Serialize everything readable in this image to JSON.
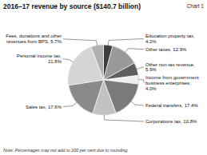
{
  "chart_data": {
    "type": "pie",
    "title": "2016–17 revenue by source ($140.7 billion)",
    "annotations": [
      "Chart 1",
      "Note: Percentages may not add to 100 per cent due to rounding."
    ],
    "categories": [
      "Education property tax, 4.2%",
      "Other taxes, 12.9%",
      "Other non-tax revenue,\n5.9%",
      "Income from government\nbusiness enterprises,\n4.0%",
      "Federal transfers, 17.4%",
      "Corporations tax, 10.8%",
      "Sales tax, 17.6%",
      "Personal income tax,\n21.8%",
      "Fees, donations and other\nrevenues from BPS, 5.7%"
    ],
    "values": [
      4.2,
      12.9,
      5.9,
      4.0,
      17.4,
      10.8,
      17.6,
      21.8,
      5.7
    ],
    "colors": [
      "#3d3d3d",
      "#999999",
      "#5e5e5e",
      "#efefef",
      "#7a7a7a",
      "#c2c2c2",
      "#8a8a8a",
      "#d5d5d5",
      "#b0b0b0"
    ]
  }
}
